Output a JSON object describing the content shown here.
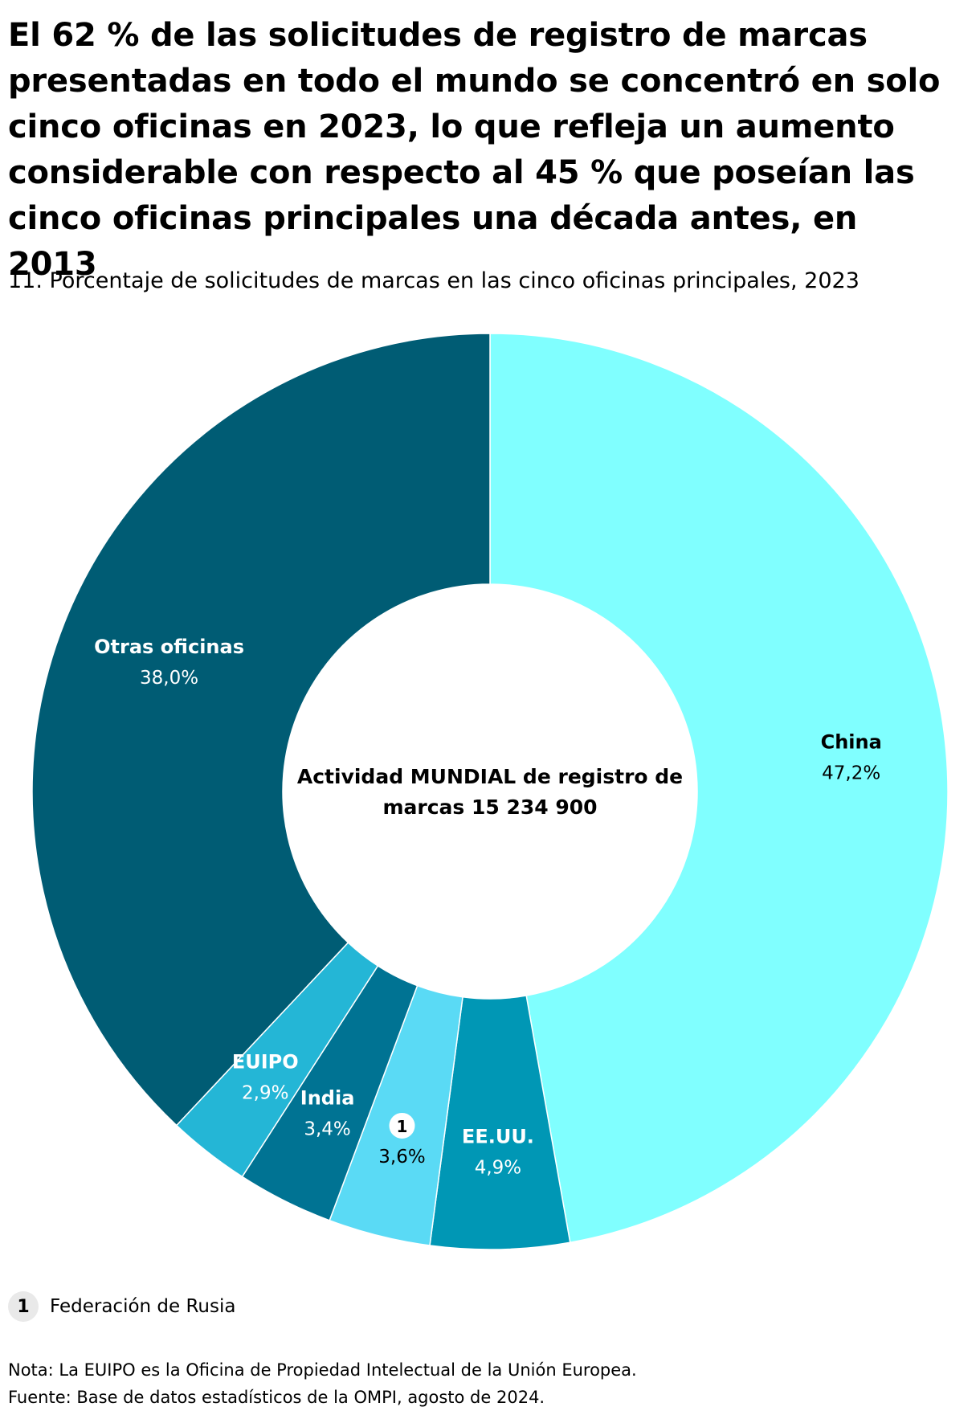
{
  "title": "El 62 % de las solicitudes de registro de marcas presentadas en todo el mundo se concentró en solo cinco oficinas en 2023, lo que refleja un aumento considerable con respecto al 45 % que poseían las cinco oficinas principales una década antes, en 2013",
  "subtitle": "11. Porcentaje de solicitudes de marcas en las cinco oficinas principales, 2023",
  "chart_data": {
    "type": "pie",
    "subtype": "donut",
    "center_label": "Actividad MUNDIAL de registro de marcas 15 234 900",
    "slices": [
      {
        "label": "China",
        "value": 47.2,
        "value_label": "47,2%",
        "color": "#80ffff",
        "text_color": "#000000"
      },
      {
        "label": "EE.UU.",
        "value": 4.9,
        "value_label": "4,9%",
        "color": "#0097b5",
        "text_color": "#ffffff"
      },
      {
        "label": "1",
        "value": 3.6,
        "value_label": "3,6%",
        "color": "#5adaf5",
        "text_color": "#000000",
        "badge": true
      },
      {
        "label": "India",
        "value": 3.4,
        "value_label": "3,4%",
        "color": "#007393",
        "text_color": "#ffffff"
      },
      {
        "label": "EUIPO",
        "value": 2.9,
        "value_label": "2,9%",
        "color": "#24b6d6",
        "text_color": "#ffffff"
      },
      {
        "label": "Otras oficinas",
        "value": 38.0,
        "value_label": "38,0%",
        "color": "#005c74",
        "text_color": "#ffffff"
      }
    ]
  },
  "legend": {
    "badge": "1",
    "label": "Federación de Rusia"
  },
  "notes": {
    "note": "Nota: La EUIPO es la Oficina de Propiedad Intelectual de la Unión Europea.",
    "source": "Fuente: Base de datos estadísticos de la OMPI, agosto de 2024."
  }
}
